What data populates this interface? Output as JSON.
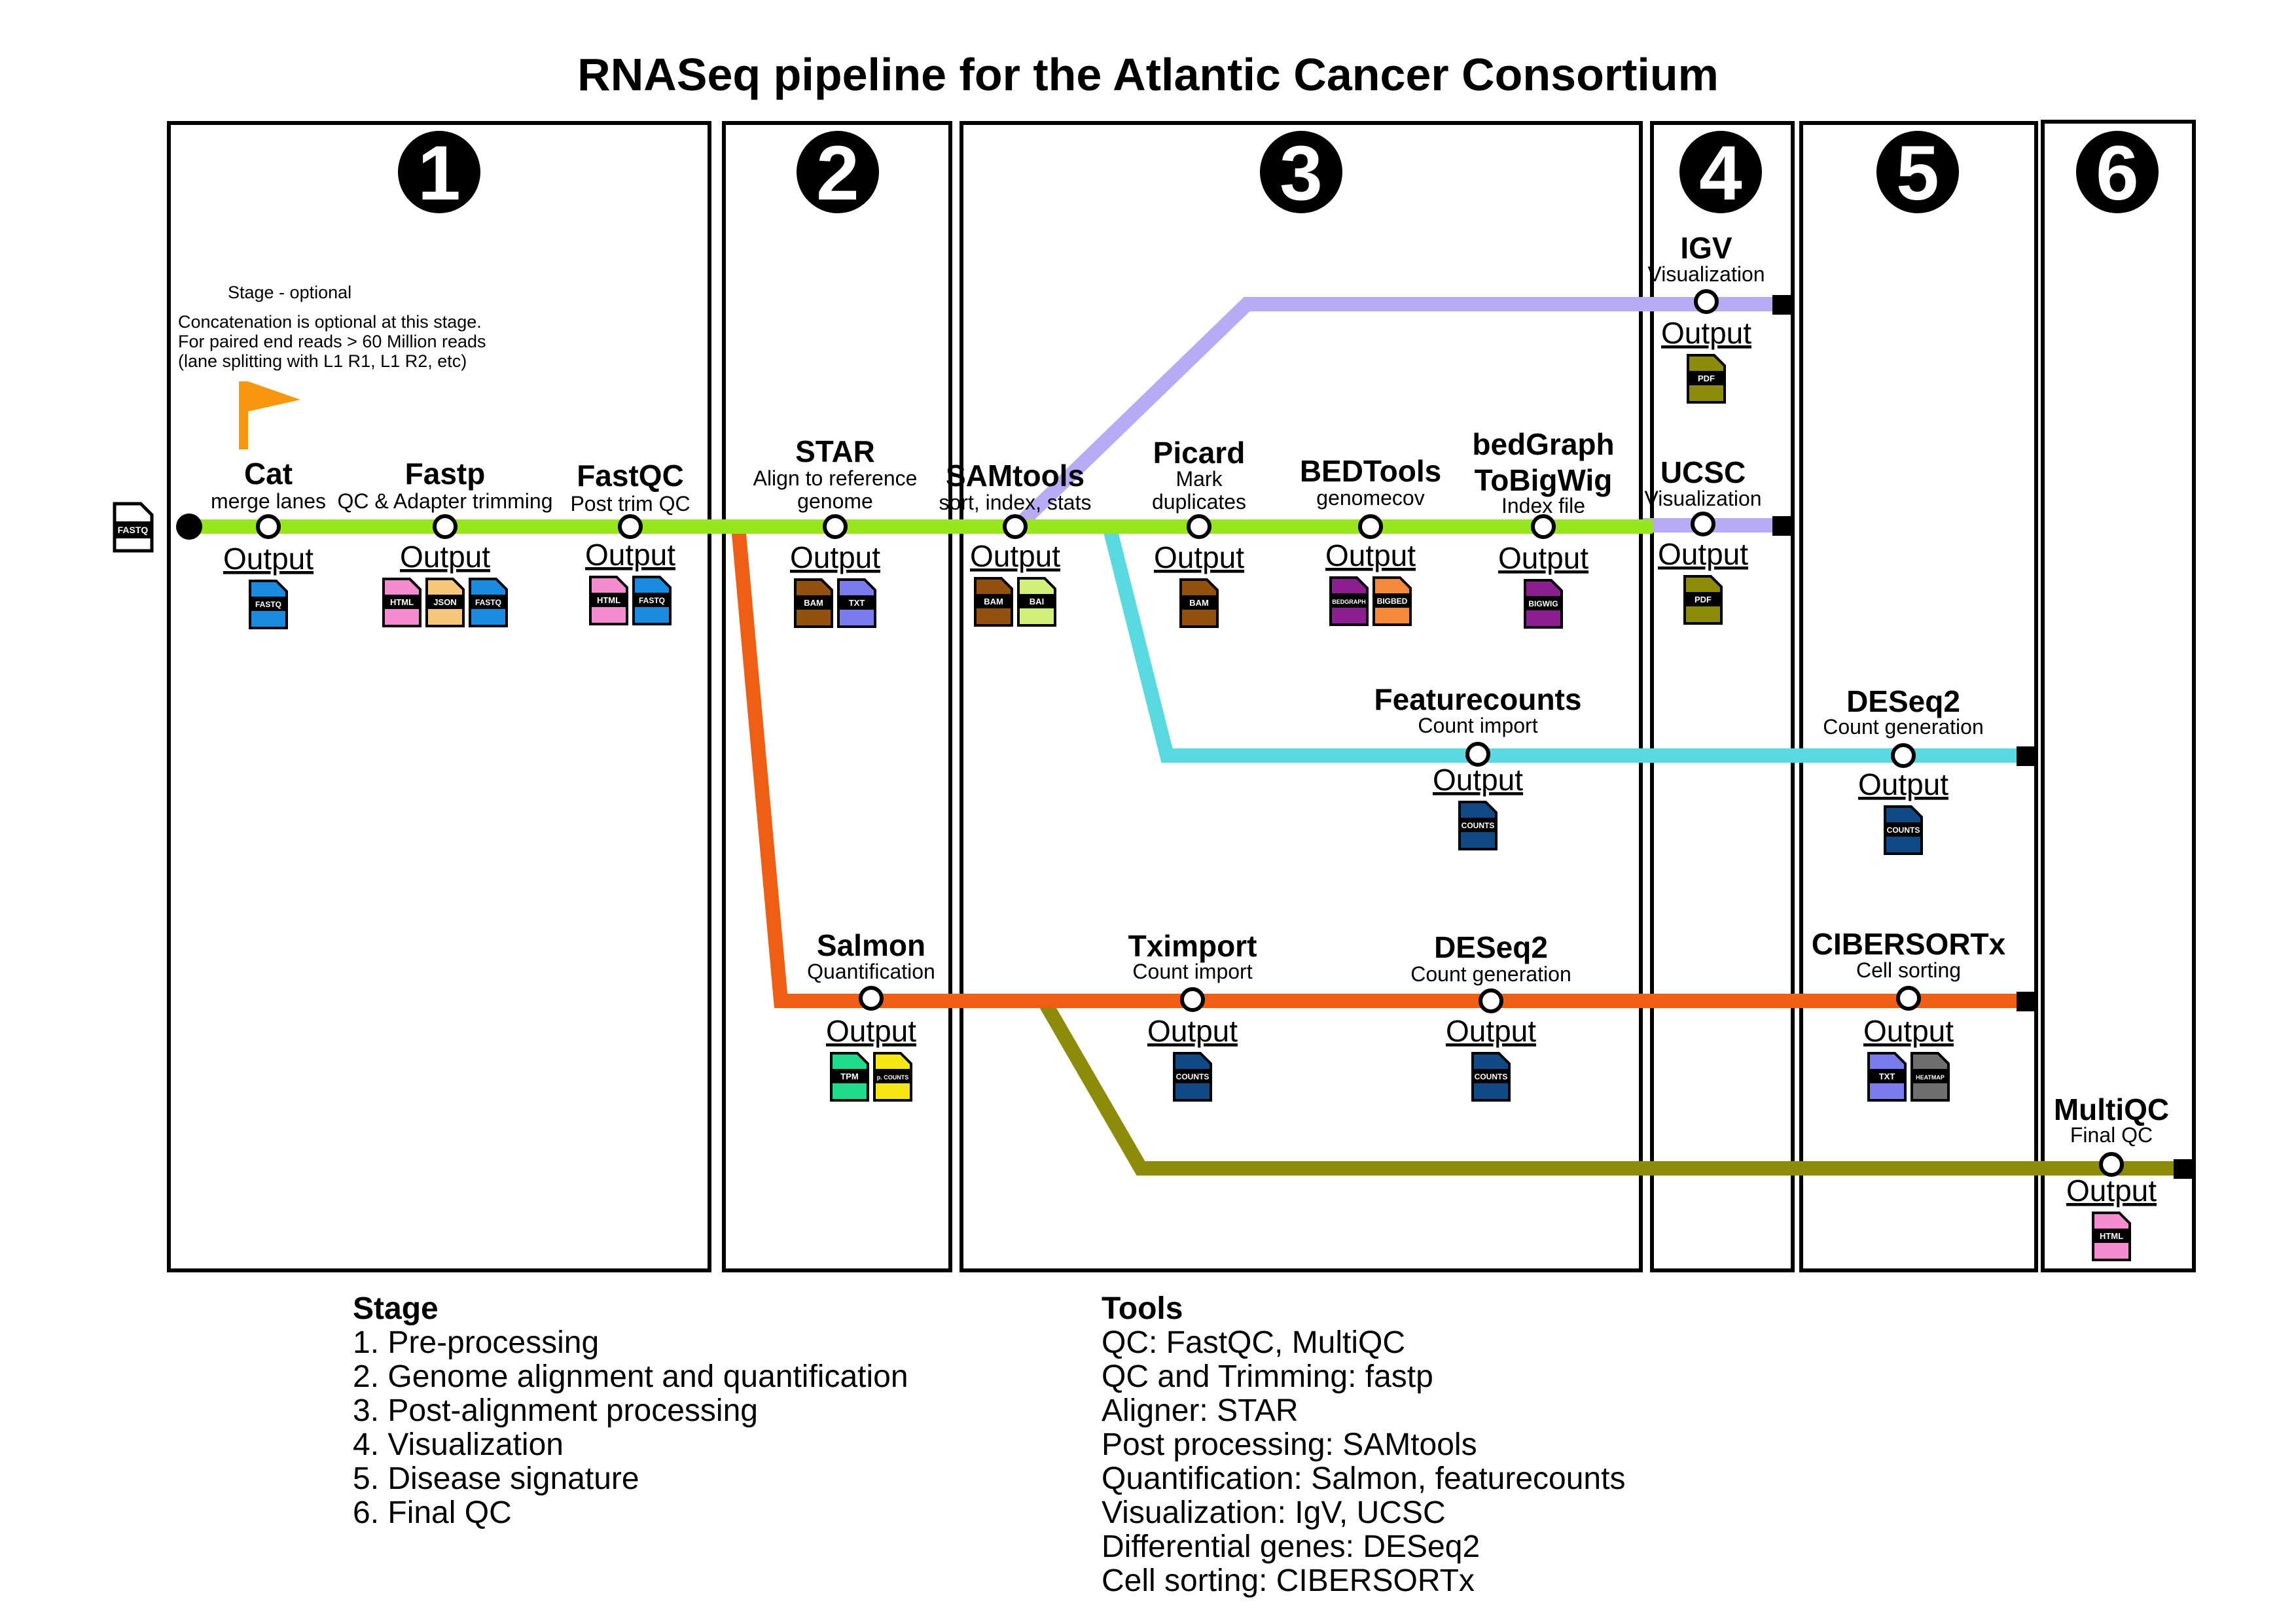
{
  "title": "RNASeq pipeline for the Atlantic Cancer Consortium",
  "colors": {
    "main_line": "#98e61e",
    "visualization_line": "#b7abf5",
    "count_line": "#5ad9e0",
    "salmon_line": "#ee5e14",
    "qc_line": "#8c8c0a"
  },
  "stages": [
    {
      "number": "1"
    },
    {
      "number": "2"
    },
    {
      "number": "3"
    },
    {
      "number": "4"
    },
    {
      "number": "5"
    },
    {
      "number": "6"
    }
  ],
  "input_file": {
    "label": "FASTQ",
    "icon": "file-icon"
  },
  "optional_note": {
    "flag_label": "Stage - optional",
    "lines": [
      "Concatenation is optional at this stage.",
      "For paired end reads > 60 Million reads",
      "(lane splitting with L1 R1, L1 R2, etc)"
    ],
    "icon": "flag-icon"
  },
  "output_label": "Output",
  "tools": {
    "cat": {
      "name": "Cat",
      "sub": "merge lanes",
      "files": [
        {
          "label": "FASTQ",
          "color": "#1a8be0"
        }
      ]
    },
    "fastp": {
      "name": "Fastp",
      "sub": "QC & Adapter trimming",
      "files": [
        {
          "label": "HTML",
          "color": "#f58ccf"
        },
        {
          "label": "JSON",
          "color": "#f7c879"
        },
        {
          "label": "FASTQ",
          "color": "#1a8be0"
        }
      ]
    },
    "fastqc": {
      "name": "FastQC",
      "sub": "Post trim QC",
      "files": [
        {
          "label": "HTML",
          "color": "#f58ccf"
        },
        {
          "label": "FASTQ",
          "color": "#1a8be0"
        }
      ]
    },
    "star": {
      "name": "STAR",
      "sub1": "Align to reference",
      "sub2": "genome",
      "files": [
        {
          "label": "BAM",
          "color": "#93510f"
        },
        {
          "label": "TXT",
          "color": "#7b7bf0"
        }
      ]
    },
    "samtools": {
      "name": "SAMtools",
      "sub": "sort, index, stats",
      "files": [
        {
          "label": "BAM",
          "color": "#93510f"
        },
        {
          "label": "BAI",
          "color": "#d0f07a"
        }
      ]
    },
    "picard": {
      "name": "Picard",
      "sub1": "Mark",
      "sub2": "duplicates",
      "files": [
        {
          "label": "BAM",
          "color": "#93510f"
        }
      ]
    },
    "bedtools": {
      "name": "BEDTools",
      "sub": "genomecov",
      "files": [
        {
          "label": "BEDGRAPH",
          "color": "#8b1f8f"
        },
        {
          "label": "BIGBED",
          "color": "#f58a3c"
        }
      ]
    },
    "bedgraph": {
      "name1": "bedGraph",
      "name2": "ToBigWig",
      "sub": "Index file",
      "files": [
        {
          "label": "BIGWIG",
          "color": "#8b1f8f"
        }
      ]
    },
    "igv": {
      "name": "IGV",
      "sub": "Visualization",
      "files": [
        {
          "label": "PDF",
          "color": "#8c8c0a"
        }
      ]
    },
    "ucsc": {
      "name": "UCSC",
      "sub": "Visualization",
      "files": [
        {
          "label": "PDF",
          "color": "#8c8c0a"
        }
      ]
    },
    "featurecounts": {
      "name": "Featurecounts",
      "sub": "Count import",
      "files": [
        {
          "label": "COUNTS",
          "color": "#0f4a87"
        }
      ]
    },
    "deseq2_top": {
      "name": "DESeq2",
      "sub": "Count generation",
      "files": [
        {
          "label": "COUNTS",
          "color": "#0f4a87"
        }
      ]
    },
    "salmon": {
      "name": "Salmon",
      "sub": "Quantification",
      "files": [
        {
          "label": "TPM",
          "color": "#1edc8c"
        },
        {
          "label": "p. COUNTS",
          "color": "#f5e614"
        }
      ]
    },
    "tximport": {
      "name": "Tximport",
      "sub": "Count import",
      "files": [
        {
          "label": "COUNTS",
          "color": "#0f4a87"
        }
      ]
    },
    "deseq2_bottom": {
      "name": "DESeq2",
      "sub": "Count generation",
      "files": [
        {
          "label": "COUNTS",
          "color": "#0f4a87"
        }
      ]
    },
    "cibersortx": {
      "name": "CIBERSORTx",
      "sub": "Cell sorting",
      "files": [
        {
          "label": "TXT",
          "color": "#7b7bf0"
        },
        {
          "label": "HEATMAP",
          "color": "#6e6e6e"
        }
      ]
    },
    "multiqc": {
      "name": "MultiQC",
      "sub": "Final QC",
      "files": [
        {
          "label": "HTML",
          "color": "#f58ccf"
        }
      ]
    }
  },
  "legend_stage": {
    "header": "Stage",
    "items": [
      "1. Pre-processing",
      "2. Genome alignment and quantification",
      "3. Post-alignment processing",
      "4. Visualization",
      "5. Disease signature",
      "6. Final QC"
    ]
  },
  "legend_tools": {
    "header": "Tools",
    "items": [
      "QC: FastQC, MultiQC",
      "QC and Trimming: fastp",
      "Aligner: STAR",
      "Post processing: SAMtools",
      "Quantification: Salmon, featurecounts",
      "Visualization: IgV, UCSC",
      "Differential genes: DESeq2",
      "Cell sorting: CIBERSORTx"
    ]
  }
}
